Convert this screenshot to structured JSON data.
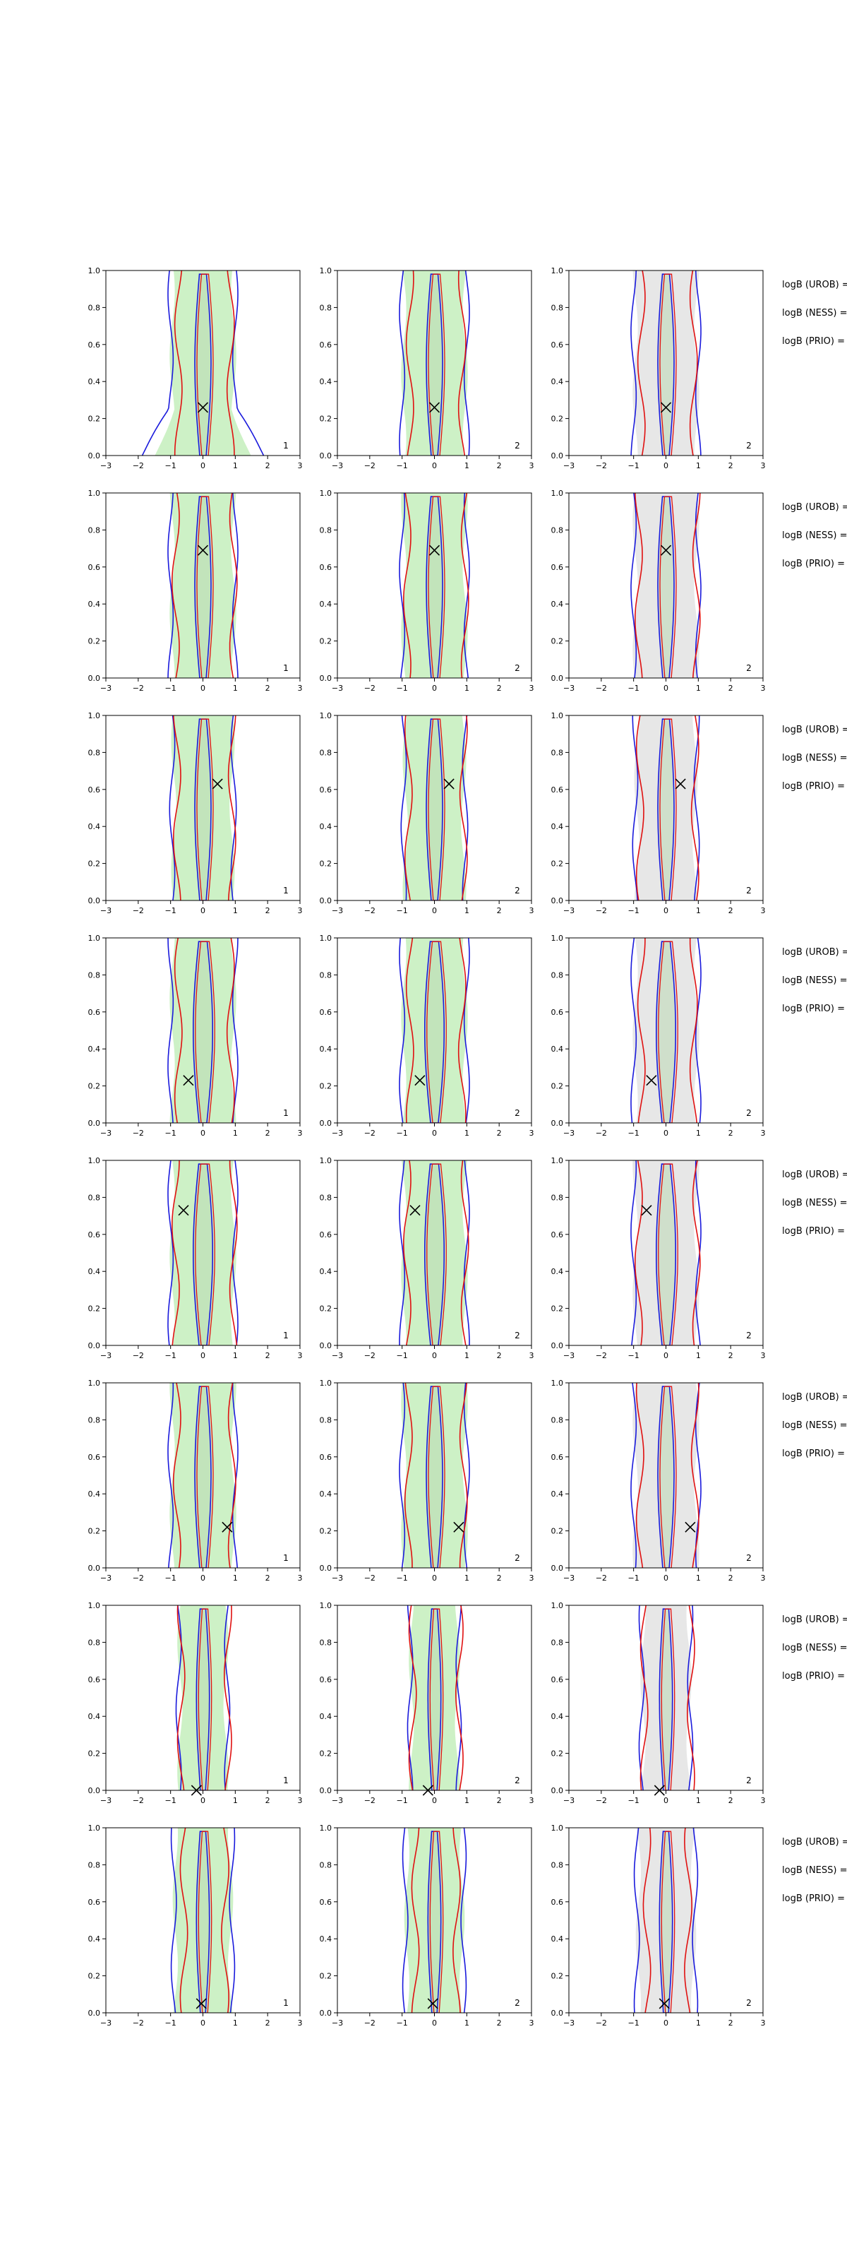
{
  "colors": {
    "prior_fill": "#e6e6e6",
    "posterior_fill": "#c8f0c0",
    "contour_uniform": "#1a1adc",
    "contour_other": "#e01010",
    "truth_marker": "#000000",
    "axis": "#000000"
  },
  "chart_data": {
    "type": "contour",
    "grid": {
      "rows": 8,
      "cols": 3
    },
    "xlim": [
      -3,
      3
    ],
    "ylim": [
      0,
      1
    ],
    "xticks": [
      "−3",
      "−2",
      "−1",
      "0",
      "1",
      "2",
      "3"
    ],
    "yticks": [
      "0.0",
      "0.2",
      "0.4",
      "0.6",
      "0.8",
      "1.0"
    ],
    "column_corner_labels": [
      "1",
      "2",
      "2"
    ],
    "side_labels": [
      "logB (UROB) =",
      "logB (NESS) =",
      "logB (PRIO) ="
    ],
    "truth_points": [
      {
        "x": 0.0,
        "y": 0.26
      },
      {
        "x": 0.0,
        "y": 0.69
      },
      {
        "x": 0.45,
        "y": 0.63
      },
      {
        "x": -0.45,
        "y": 0.23
      },
      {
        "x": -0.6,
        "y": 0.73
      },
      {
        "x": 0.75,
        "y": 0.22
      },
      {
        "x": -0.2,
        "y": 0.0
      },
      {
        "x": -0.05,
        "y": 0.05
      }
    ],
    "density_contours": [
      {
        "row": 1,
        "blue_outer_halfwidth": 1.0,
        "red_outer_halfwidth": 0.95,
        "inner_halfwidth": 0.25,
        "wide_base": true
      },
      {
        "row": 2,
        "blue_outer_halfwidth": 1.0,
        "red_outer_halfwidth": 1.05,
        "inner_halfwidth": 0.25,
        "wide_base": false
      },
      {
        "row": 3,
        "blue_outer_halfwidth": 0.95,
        "red_outer_halfwidth": 1.0,
        "inner_halfwidth": 0.25,
        "wide_base": false
      },
      {
        "row": 4,
        "blue_outer_halfwidth": 1.0,
        "red_outer_halfwidth": 0.95,
        "inner_halfwidth": 0.3,
        "wide_base": false
      },
      {
        "row": 5,
        "blue_outer_halfwidth": 1.0,
        "red_outer_halfwidth": 1.05,
        "inner_halfwidth": 0.3,
        "wide_base": false
      },
      {
        "row": 6,
        "blue_outer_halfwidth": 1.0,
        "red_outer_halfwidth": 1.0,
        "inner_halfwidth": 0.25,
        "wide_base": false
      },
      {
        "row": 7,
        "blue_outer_halfwidth": 0.75,
        "red_outer_halfwidth": 0.85,
        "inner_halfwidth": 0.2,
        "wide_base": false
      },
      {
        "row": 8,
        "blue_outer_halfwidth": 0.9,
        "red_outer_halfwidth": 0.75,
        "inner_halfwidth": 0.2,
        "wide_base": false
      }
    ]
  }
}
